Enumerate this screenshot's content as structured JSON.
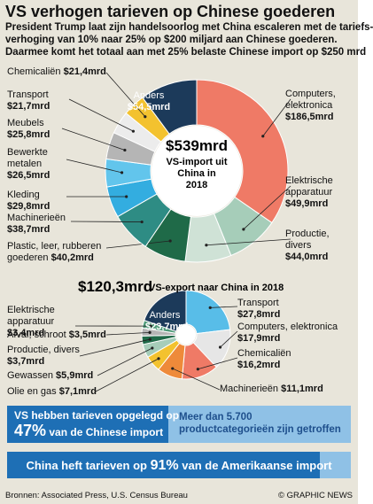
{
  "header": {
    "title": "VS verhogen tarieven op Chinese goederen",
    "subtitle_lines": [
      "President Trump laat zijn handelsoorlog met China escaleren met de tariefs-",
      "verhoging van 10% naar 25% op $200 miljard aan Chinese goederen.",
      "Daarmee  komt het totaal aan met 25% belaste Chinese import op $250 mrd"
    ]
  },
  "chart_data": [
    {
      "type": "donut",
      "center_label": "$539mrd",
      "center_caption": "VS-import uit China in 2018",
      "categories": [
        "Computers, elektronica",
        "Elektrische apparatuur",
        "Productie, divers",
        "Plastic, leer, rubberen goederen",
        "Machinerieën",
        "Kleding",
        "Bewerkte metalen",
        "Meubels",
        "Transport",
        "Chemicaliën",
        "Anders"
      ],
      "values": [
        186.5,
        49.9,
        44.0,
        40.2,
        38.7,
        29.8,
        26.5,
        25.8,
        21.7,
        21.4,
        54.5
      ],
      "value_labels": [
        "$186,5mrd",
        "$49,9mrd",
        "$44,0mrd",
        "$40,2mrd",
        "$38,7mrd",
        "$29,8mrd",
        "$26,5mrd",
        "$25,8mrd",
        "$21,7mrd",
        "$21,4mrd",
        "$54,5mrd"
      ],
      "colors": [
        "#ef7a66",
        "#a6cdb9",
        "#cfe2d6",
        "#1f6a48",
        "#2e8c84",
        "#33ade0",
        "#62c5ec",
        "#b5b5b5",
        "#ececec",
        "#f3c22f",
        "#1c3a5a"
      ]
    },
    {
      "type": "donut",
      "center_label": "$120,3mrd",
      "center_caption": "VS-export naar China in 2018",
      "categories": [
        "Transport",
        "Computers, elektronica",
        "Chemicaliën",
        "Machinerieën",
        "Olie en gas",
        "Gewassen",
        "Productie, divers",
        "Afval, schroot",
        "Elektrische apparatuur",
        "Anders"
      ],
      "values": [
        27.8,
        17.9,
        16.2,
        11.1,
        7.1,
        5.9,
        3.7,
        3.5,
        3.4,
        23.7
      ],
      "value_labels": [
        "$27,8mrd",
        "$17,9mrd",
        "$16,2mrd",
        "$11,1mrd",
        "$7,1mrd",
        "$5,9mrd",
        "$3,7mrd",
        "$3,5mrd",
        "$3,4mrd",
        "$23,7mrd"
      ],
      "colors": [
        "#58bde8",
        "#e6e6e6",
        "#ef7a66",
        "#ee8a3a",
        "#f3c22f",
        "#a6cdb9",
        "#1f6a48",
        "#b5b5b5",
        "#4e9a78",
        "#1c3a5a"
      ]
    }
  ],
  "tariff_bars": [
    {
      "text": "VS hebben tarieven opgelegd op",
      "value": 47,
      "value_label": "47%",
      "text_after": "van de Chinese import"
    },
    {
      "text": "China heft tarieven op",
      "value": 91,
      "value_label": "91%",
      "text_after": "van de Amerikaanse import"
    }
  ],
  "note": "Meer dan 5.700 productcategorieën zijn getroffen",
  "footer": {
    "source": "Bronnen: Associated Press, U.S. Census Bureau",
    "credit": "© GRAPHIC NEWS"
  }
}
